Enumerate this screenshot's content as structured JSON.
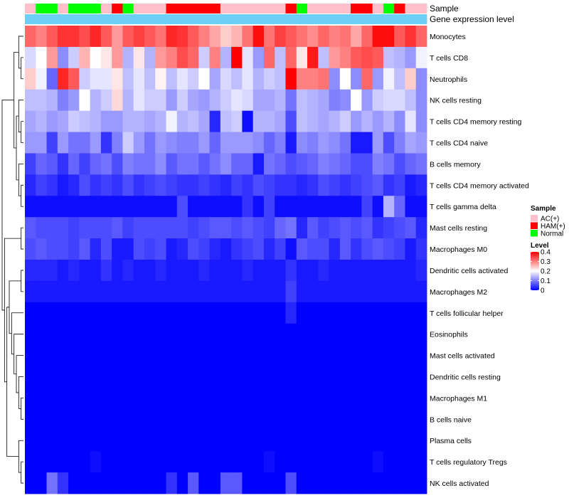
{
  "chart_data": {
    "type": "heatmap",
    "title": "",
    "annotation_rows": [
      "Sample",
      "Gene expression level"
    ],
    "rows": [
      "Monocytes",
      "T cells CD8",
      "Neutrophils",
      "NK cells resting",
      "T cells CD4 memory resting",
      "T cells CD4 naive",
      "B cells memory",
      "T cells CD4 memory activated",
      "T cells gamma delta",
      "Mast cells resting",
      "Macrophages M0",
      "Dendritic cells activated",
      "Macrophages M2",
      "T cells follicular helper",
      "Eosinophils",
      "Mast cells activated",
      "Dendritic cells resting",
      "Macrophages M1",
      "B cells naive",
      "Plasma cells",
      "T cells regulatory  Tregs",
      "NK cells activated"
    ],
    "samples": [
      "AC(+)",
      "Normal",
      "Normal",
      "AC(+)",
      "Normal",
      "Normal",
      "Normal",
      "AC(+)",
      "HAM(+)",
      "Normal",
      "AC(+)",
      "AC(+)",
      "AC(+)",
      "HAM(+)",
      "HAM(+)",
      "HAM(+)",
      "HAM(+)",
      "HAM(+)",
      "AC(+)",
      "AC(+)",
      "AC(+)",
      "AC(+)",
      "AC(+)",
      "AC(+)",
      "HAM(+)",
      "Normal",
      "AC(+)",
      "AC(+)",
      "AC(+)",
      "AC(+)",
      "HAM(+)",
      "HAM(+)",
      "AC(+)",
      "Normal",
      "HAM(+)",
      "AC(+)",
      "AC(+)"
    ],
    "gene_expression_level": "constant",
    "values": [
      [
        0.32,
        0.3,
        0.33,
        0.36,
        0.36,
        0.34,
        0.37,
        0.33,
        0.28,
        0.33,
        0.35,
        0.33,
        0.31,
        0.37,
        0.36,
        0.33,
        0.3,
        0.27,
        0.24,
        0.26,
        0.31,
        0.39,
        0.31,
        0.35,
        0.33,
        0.31,
        0.29,
        0.32,
        0.3,
        0.31,
        0.27,
        0.32,
        0.39,
        0.39,
        0.33,
        0.36,
        0.32
      ],
      [
        0.17,
        0.2,
        0.28,
        0.11,
        0.16,
        0.26,
        0.2,
        0.22,
        0.28,
        0.14,
        0.22,
        0.14,
        0.28,
        0.3,
        0.34,
        0.32,
        0.16,
        0.3,
        0.14,
        0.4,
        0.18,
        0.12,
        0.32,
        0.15,
        0.32,
        0.22,
        0.38,
        0.15,
        0.28,
        0.3,
        0.33,
        0.34,
        0.33,
        0.15,
        0.14,
        0.12,
        0.19
      ],
      [
        0.24,
        0.19,
        0.08,
        0.37,
        0.33,
        0.16,
        0.18,
        0.18,
        0.22,
        0.15,
        0.18,
        0.15,
        0.21,
        0.15,
        0.18,
        0.16,
        0.2,
        0.13,
        0.17,
        0.15,
        0.18,
        0.14,
        0.16,
        0.15,
        0.4,
        0.3,
        0.3,
        0.31,
        0.11,
        0.2,
        0.11,
        0.32,
        0.12,
        0.19,
        0.15,
        0.24,
        0.11
      ],
      [
        0.15,
        0.15,
        0.14,
        0.1,
        0.12,
        0.2,
        0.14,
        0.16,
        0.23,
        0.14,
        0.18,
        0.16,
        0.16,
        0.12,
        0.16,
        0.13,
        0.12,
        0.14,
        0.16,
        0.18,
        0.17,
        0.13,
        0.13,
        0.14,
        0.09,
        0.15,
        0.14,
        0.13,
        0.1,
        0.11,
        0.2,
        0.12,
        0.16,
        0.17,
        0.17,
        0.15,
        0.11
      ],
      [
        0.13,
        0.14,
        0.12,
        0.13,
        0.16,
        0.15,
        0.14,
        0.12,
        0.12,
        0.14,
        0.14,
        0.13,
        0.14,
        0.19,
        0.14,
        0.15,
        0.13,
        0.03,
        0.15,
        0.16,
        0.01,
        0.14,
        0.14,
        0.13,
        0.06,
        0.15,
        0.14,
        0.13,
        0.14,
        0.16,
        0.12,
        0.14,
        0.12,
        0.14,
        0.11,
        0.18,
        0.11
      ],
      [
        0.12,
        0.12,
        0.05,
        0.12,
        0.09,
        0.09,
        0.12,
        0.04,
        0.1,
        0.16,
        0.12,
        0.09,
        0.12,
        0.11,
        0.1,
        0.1,
        0.12,
        0.08,
        0.12,
        0.12,
        0.12,
        0.11,
        0.08,
        0.1,
        0.02,
        0.11,
        0.1,
        0.12,
        0.11,
        0.09,
        0.02,
        0.02,
        0.12,
        0.06,
        0.1,
        0.13,
        0.12
      ],
      [
        0.05,
        0.08,
        0.07,
        0.04,
        0.08,
        0.05,
        0.08,
        0.09,
        0.06,
        0.1,
        0.09,
        0.09,
        0.11,
        0.07,
        0.09,
        0.09,
        0.07,
        0.09,
        0.11,
        0.08,
        0.08,
        0.02,
        0.09,
        0.08,
        0.06,
        0.07,
        0.08,
        0.1,
        0.09,
        0.08,
        0.06,
        0.06,
        0.1,
        0.09,
        0.06,
        0.08,
        0.09
      ],
      [
        0.03,
        0.05,
        0.04,
        0.02,
        0.03,
        0.06,
        0.04,
        0.05,
        0.04,
        0.06,
        0.04,
        0.05,
        0.06,
        0.05,
        0.04,
        0.04,
        0.05,
        0.04,
        0.03,
        0.05,
        0.04,
        0.06,
        0.05,
        0.04,
        0.04,
        0.03,
        0.04,
        0.06,
        0.05,
        0.04,
        0.05,
        0.06,
        0.07,
        0.04,
        0.05,
        0.02,
        0.03
      ],
      [
        0.01,
        0.01,
        0.01,
        0.01,
        0.01,
        0.01,
        0.01,
        0.01,
        0.01,
        0.01,
        0.01,
        0.01,
        0.01,
        0.01,
        0.06,
        0.01,
        0.01,
        0.01,
        0.01,
        0.01,
        0.04,
        0.01,
        0.05,
        0.01,
        0.01,
        0.01,
        0.01,
        0.01,
        0.01,
        0.01,
        0.01,
        0.05,
        0.01,
        0.14,
        0.08,
        0.01,
        0.01
      ],
      [
        0.07,
        0.06,
        0.06,
        0.06,
        0.05,
        0.06,
        0.06,
        0.06,
        0.07,
        0.05,
        0.06,
        0.06,
        0.06,
        0.06,
        0.06,
        0.05,
        0.06,
        0.07,
        0.07,
        0.06,
        0.07,
        0.06,
        0.05,
        0.08,
        0.09,
        0.03,
        0.07,
        0.05,
        0.06,
        0.07,
        0.06,
        0.07,
        0.04,
        0.05,
        0.06,
        0.07,
        0.03
      ],
      [
        0.06,
        0.07,
        0.06,
        0.06,
        0.05,
        0.07,
        0.03,
        0.06,
        0.02,
        0.02,
        0.06,
        0.05,
        0.06,
        0.02,
        0.03,
        0.06,
        0.05,
        0.03,
        0.02,
        0.04,
        0.05,
        0.06,
        0.03,
        0.05,
        0.01,
        0.07,
        0.06,
        0.06,
        0.03,
        0.07,
        0.04,
        0.06,
        0.07,
        0.06,
        0.05,
        0.02,
        0.04
      ],
      [
        0.03,
        0.03,
        0.03,
        0.02,
        0.03,
        0.02,
        0.02,
        0.04,
        0.02,
        0.03,
        0.02,
        0.02,
        0.03,
        0.02,
        0.02,
        0.02,
        0.03,
        0.02,
        0.02,
        0.02,
        0.03,
        0.02,
        0.02,
        0.02,
        0.04,
        0.02,
        0.02,
        0.03,
        0.02,
        0.02,
        0.02,
        0.02,
        0.02,
        0.02,
        0.02,
        0.02,
        0.03
      ],
      [
        0.02,
        0.02,
        0.02,
        0.02,
        0.02,
        0.02,
        0.02,
        0.02,
        0.02,
        0.02,
        0.02,
        0.02,
        0.02,
        0.02,
        0.02,
        0.02,
        0.02,
        0.02,
        0.02,
        0.02,
        0.02,
        0.02,
        0.02,
        0.02,
        0.05,
        0.02,
        0.02,
        0.02,
        0.02,
        0.02,
        0.02,
        0.02,
        0.02,
        0.02,
        0.02,
        0.02,
        0.02
      ],
      [
        0.0,
        0.0,
        0.0,
        0.0,
        0.0,
        0.0,
        0.0,
        0.0,
        0.0,
        0.0,
        0.0,
        0.0,
        0.0,
        0.0,
        0.0,
        0.0,
        0.0,
        0.0,
        0.0,
        0.0,
        0.0,
        0.0,
        0.0,
        0.0,
        0.03,
        0.0,
        0.0,
        0.0,
        0.0,
        0.0,
        0.0,
        0.0,
        0.0,
        0.0,
        0.0,
        0.0,
        0.0
      ],
      [
        0.0,
        0.0,
        0.0,
        0.0,
        0.0,
        0.0,
        0.0,
        0.0,
        0.0,
        0.0,
        0.0,
        0.0,
        0.0,
        0.0,
        0.0,
        0.0,
        0.0,
        0.0,
        0.0,
        0.0,
        0.0,
        0.0,
        0.0,
        0.0,
        0.0,
        0.0,
        0.0,
        0.0,
        0.0,
        0.0,
        0.0,
        0.0,
        0.0,
        0.0,
        0.0,
        0.0,
        0.0
      ],
      [
        0.0,
        0.0,
        0.0,
        0.0,
        0.0,
        0.0,
        0.0,
        0.0,
        0.0,
        0.0,
        0.0,
        0.0,
        0.0,
        0.0,
        0.0,
        0.0,
        0.0,
        0.0,
        0.0,
        0.0,
        0.0,
        0.0,
        0.0,
        0.0,
        0.0,
        0.0,
        0.0,
        0.0,
        0.0,
        0.0,
        0.0,
        0.0,
        0.0,
        0.0,
        0.0,
        0.0,
        0.0
      ],
      [
        0.0,
        0.0,
        0.0,
        0.0,
        0.0,
        0.0,
        0.0,
        0.0,
        0.0,
        0.0,
        0.0,
        0.0,
        0.0,
        0.0,
        0.0,
        0.0,
        0.0,
        0.0,
        0.0,
        0.0,
        0.0,
        0.0,
        0.0,
        0.0,
        0.0,
        0.0,
        0.0,
        0.0,
        0.0,
        0.0,
        0.0,
        0.0,
        0.0,
        0.0,
        0.0,
        0.0,
        0.0
      ],
      [
        0.0,
        0.0,
        0.0,
        0.0,
        0.0,
        0.0,
        0.0,
        0.0,
        0.0,
        0.0,
        0.0,
        0.0,
        0.0,
        0.0,
        0.0,
        0.0,
        0.0,
        0.0,
        0.0,
        0.0,
        0.0,
        0.0,
        0.0,
        0.0,
        0.0,
        0.0,
        0.0,
        0.0,
        0.0,
        0.0,
        0.0,
        0.0,
        0.0,
        0.0,
        0.0,
        0.0,
        0.0
      ],
      [
        0.0,
        0.0,
        0.0,
        0.0,
        0.0,
        0.0,
        0.0,
        0.0,
        0.0,
        0.0,
        0.0,
        0.0,
        0.0,
        0.0,
        0.0,
        0.0,
        0.0,
        0.0,
        0.0,
        0.0,
        0.0,
        0.0,
        0.0,
        0.0,
        0.0,
        0.0,
        0.0,
        0.0,
        0.0,
        0.0,
        0.0,
        0.0,
        0.0,
        0.0,
        0.0,
        0.0,
        0.0
      ],
      [
        0.0,
        0.0,
        0.0,
        0.0,
        0.0,
        0.0,
        0.0,
        0.0,
        0.0,
        0.0,
        0.0,
        0.0,
        0.0,
        0.0,
        0.0,
        0.0,
        0.0,
        0.0,
        0.0,
        0.0,
        0.0,
        0.0,
        0.0,
        0.0,
        0.0,
        0.0,
        0.0,
        0.0,
        0.0,
        0.0,
        0.0,
        0.0,
        0.0,
        0.0,
        0.0,
        0.0,
        0.0
      ],
      [
        0.0,
        0.0,
        0.0,
        0.0,
        0.0,
        0.0,
        0.01,
        0.0,
        0.0,
        0.0,
        0.0,
        0.0,
        0.0,
        0.0,
        0.0,
        0.0,
        0.0,
        0.0,
        0.0,
        0.0,
        0.0,
        0.0,
        0.01,
        0.0,
        0.0,
        0.0,
        0.0,
        0.0,
        0.0,
        0.0,
        0.0,
        0.0,
        0.01,
        0.0,
        0.0,
        0.0,
        0.0
      ],
      [
        0.0,
        0.0,
        0.09,
        0.04,
        0.0,
        0.0,
        0.0,
        0.0,
        0.0,
        0.0,
        0.0,
        0.0,
        0.0,
        0.04,
        0.0,
        0.07,
        0.0,
        0.0,
        0.07,
        0.07,
        0.0,
        0.0,
        0.0,
        0.0,
        0.06,
        0.0,
        0.0,
        0.0,
        0.0,
        0.0,
        0.0,
        0.0,
        0.0,
        0.0,
        0.0,
        0.0,
        0.0
      ]
    ],
    "legend": {
      "sample_title": "Sample",
      "sample_entries": [
        {
          "label": "AC(+)",
          "color": "#FFC0CB"
        },
        {
          "label": "HAM(+)",
          "color": "#FF0000"
        },
        {
          "label": "Normal",
          "color": "#00FF00"
        }
      ],
      "level_title": "Level",
      "level_ticks": [
        "0.4",
        "0.3",
        "0.2",
        "0.1",
        "0"
      ],
      "level_tick_values": [
        0.4,
        0.3,
        0.2,
        0.1,
        0
      ]
    },
    "colors": {
      "low": "#0000FF",
      "mid": "#FFFFFF",
      "high": "#FF0000",
      "gene_expression": "#6DCFF6"
    },
    "value_range": [
      0,
      0.4
    ],
    "midpoint": 0.2,
    "row_dendrogram": true
  }
}
